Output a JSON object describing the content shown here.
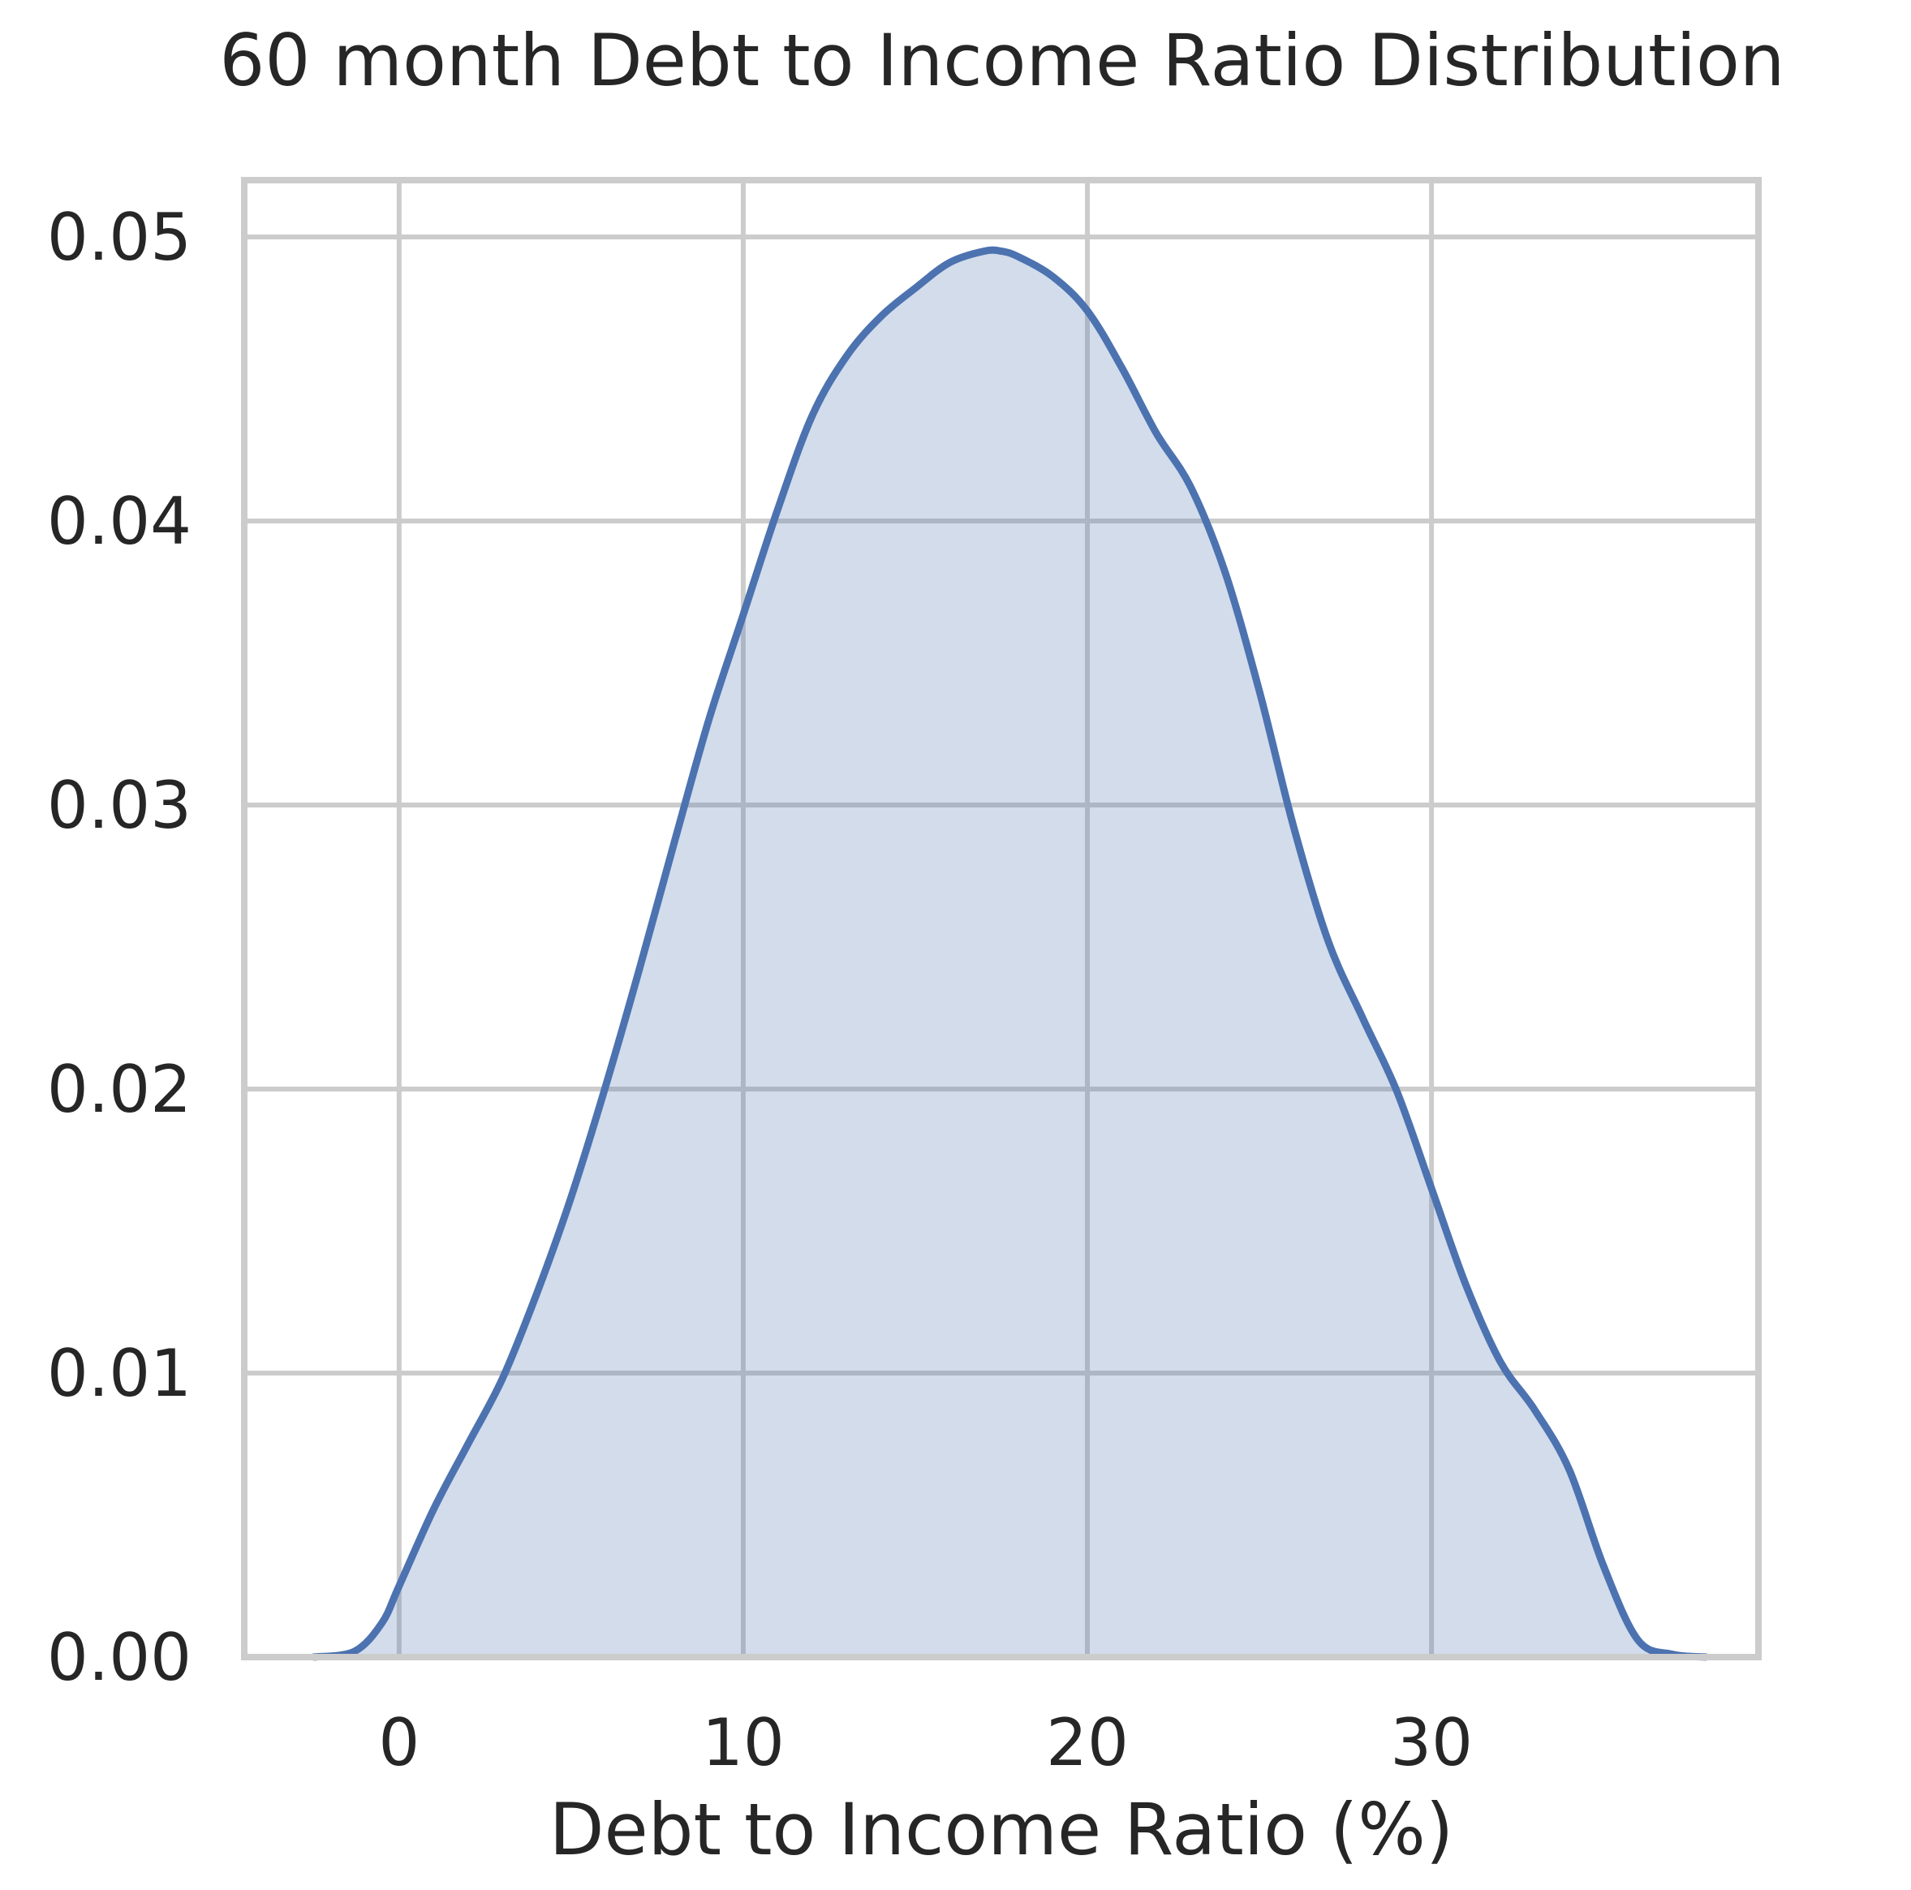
{
  "chart_data": {
    "type": "area",
    "title": "60 month Debt to Income Ratio Distribution",
    "xlabel": "Debt to Income Ratio (%)",
    "ylabel": "",
    "xlim": [
      -4.5,
      39.5
    ],
    "ylim": [
      0,
      0.052
    ],
    "xticks": [
      0,
      10,
      20,
      30
    ],
    "xtick_labels": [
      "0",
      "10",
      "20",
      "30"
    ],
    "yticks": [
      0.0,
      0.01,
      0.02,
      0.03,
      0.04,
      0.05
    ],
    "ytick_labels": [
      "0.00",
      "0.01",
      "0.02",
      "0.03",
      "0.04",
      "0.05"
    ],
    "grid": true,
    "line_color": "#4c72b0",
    "fill_color": "#4c72b0",
    "fill_opacity": 0.25,
    "series": [
      {
        "x": [
          -2.5,
          -1.3,
          -0.5,
          0,
          1,
          2,
          3,
          4,
          5,
          6,
          7,
          8,
          9,
          10,
          11,
          12,
          13,
          14,
          15,
          16,
          17,
          17.5,
          18,
          19,
          20,
          21,
          22,
          23,
          24,
          25,
          26,
          27,
          28,
          29,
          30,
          31,
          32,
          33,
          34,
          35,
          36,
          37,
          38
        ],
        "y": [
          0.0,
          0.0002,
          0.0012,
          0.0025,
          0.0052,
          0.0075,
          0.0098,
          0.0128,
          0.0162,
          0.0201,
          0.0243,
          0.0287,
          0.033,
          0.0367,
          0.0404,
          0.0437,
          0.0458,
          0.0472,
          0.0482,
          0.0491,
          0.0495,
          0.0495,
          0.0493,
          0.0486,
          0.0474,
          0.0454,
          0.0431,
          0.0412,
          0.0382,
          0.034,
          0.0292,
          0.0252,
          0.0225,
          0.0199,
          0.0165,
          0.0131,
          0.0104,
          0.0087,
          0.0066,
          0.0032,
          0.0006,
          0.0001,
          0.0
        ]
      }
    ]
  }
}
